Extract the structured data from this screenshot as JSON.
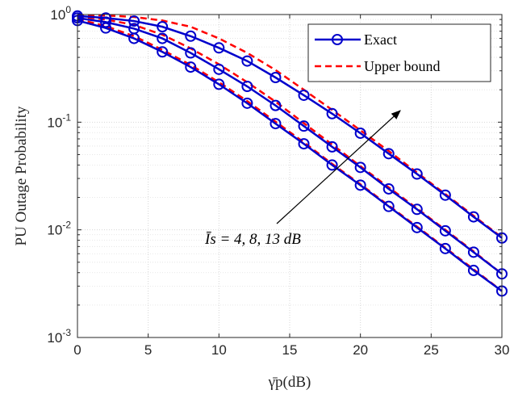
{
  "chart_data": {
    "type": "line",
    "x": [
      0,
      2,
      4,
      6,
      8,
      10,
      12,
      14,
      16,
      18,
      20,
      22,
      24,
      26,
      28,
      30
    ],
    "xlim": [
      0,
      30
    ],
    "ylim": [
      0.001,
      1
    ],
    "yscale": "log",
    "xticks": [
      "0",
      "5",
      "10",
      "15",
      "20",
      "25",
      "30"
    ],
    "xtick_values": [
      0,
      5,
      10,
      15,
      20,
      25,
      30
    ],
    "yticks": [
      {
        "base": "10",
        "exp": "0",
        "value": 1
      },
      {
        "base": "10",
        "exp": "-1",
        "value": 0.1
      },
      {
        "base": "10",
        "exp": "-2",
        "value": 0.01
      },
      {
        "base": "10",
        "exp": "-3",
        "value": 0.001
      }
    ],
    "xlabel": "γ̄p(dB)",
    "ylabel": "PU Outage Probability",
    "grid": true,
    "legend": {
      "position": "top-right",
      "entries": [
        {
          "label": "Exact",
          "color": "#0000CC",
          "style": "solid",
          "marker": "circle"
        },
        {
          "label": "Upper bound",
          "color": "#FF0000",
          "style": "dashed",
          "marker": "none"
        }
      ]
    },
    "annotation": {
      "text": "Īs = 4, 8, 13 dB",
      "arrow": "from bottom-left toward top-right, indicating increasing Īs"
    },
    "series": [
      {
        "group": "Īs = 4 dB",
        "exact": [
          0.88,
          0.75,
          0.6,
          0.45,
          0.325,
          0.225,
          0.15,
          0.097,
          0.063,
          0.04,
          0.026,
          0.0165,
          0.0105,
          0.0067,
          0.0042,
          0.0027
        ],
        "upper": [
          0.91,
          0.78,
          0.63,
          0.47,
          0.34,
          0.235,
          0.157,
          0.101,
          0.065,
          0.041,
          0.0265,
          0.0168,
          0.0107,
          0.0068,
          0.0043,
          0.0027
        ]
      },
      {
        "group": "Īs = 8 dB",
        "exact": [
          0.93,
          0.85,
          0.74,
          0.6,
          0.44,
          0.31,
          0.215,
          0.143,
          0.092,
          0.059,
          0.038,
          0.024,
          0.0155,
          0.0098,
          0.0062,
          0.0039
        ],
        "upper": [
          0.96,
          0.9,
          0.8,
          0.65,
          0.485,
          0.345,
          0.235,
          0.155,
          0.098,
          0.062,
          0.039,
          0.0248,
          0.0158,
          0.01,
          0.0063,
          0.0039
        ]
      },
      {
        "group": "Īs = 13 dB",
        "exact": [
          0.97,
          0.93,
          0.87,
          0.77,
          0.63,
          0.49,
          0.37,
          0.26,
          0.178,
          0.12,
          0.079,
          0.051,
          0.033,
          0.021,
          0.0132,
          0.0084
        ],
        "upper": [
          0.99,
          0.98,
          0.95,
          0.88,
          0.77,
          0.6,
          0.44,
          0.305,
          0.2,
          0.13,
          0.084,
          0.054,
          0.034,
          0.0215,
          0.0135,
          0.0085
        ]
      }
    ]
  }
}
